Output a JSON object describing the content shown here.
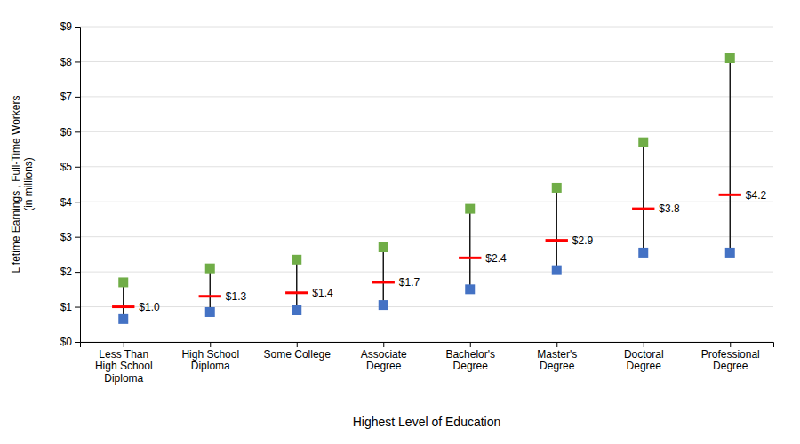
{
  "chart_data": {
    "type": "range",
    "categories": [
      "Less Than\nHigh School\nDiploma",
      "High School\nDiploma",
      "Some College",
      "Associate\nDegree",
      "Bachelor's\nDegree",
      "Master's\nDegree",
      "Doctoral\nDegree",
      "Professional\nDegree"
    ],
    "series": [
      {
        "color": "#4472C4",
        "marker": "square",
        "values": [
          0.65,
          0.85,
          0.9,
          1.05,
          1.5,
          2.05,
          2.55,
          2.55
        ]
      },
      {
        "color": "#FF0000",
        "marker": "dash",
        "values": [
          1.0,
          1.3,
          1.4,
          1.7,
          2.4,
          2.9,
          3.8,
          4.2
        ],
        "value_labels": [
          "$1.0",
          "$1.3",
          "$1.4",
          "$1.7",
          "$2.4",
          "$2.9",
          "$3.8",
          "$4.2"
        ]
      },
      {
        "color": "#70AD47",
        "marker": "square",
        "values": [
          1.7,
          2.1,
          2.35,
          2.7,
          3.8,
          4.4,
          5.7,
          8.1
        ]
      }
    ],
    "color": "#1a1a1a",
    "data_labels": true,
    "xlabel": "Highest Level of Education",
    "ylabel": "Lifetime Earnings , Full-Time Workers\n(in millions)",
    "ylim": [
      0,
      9
    ],
    "yticks": [
      {
        "value": 0,
        "label": "$0"
      },
      {
        "value": 1,
        "label": "$1"
      },
      {
        "value": 2,
        "label": "$2"
      },
      {
        "value": 3,
        "label": "$3"
      },
      {
        "value": 4,
        "label": "$4"
      },
      {
        "value": 5,
        "label": "$5"
      },
      {
        "value": 6,
        "label": "$6"
      },
      {
        "value": 7,
        "label": "$7"
      },
      {
        "value": 8,
        "label": "$8"
      },
      {
        "value": 9,
        "label": "$9"
      }
    ],
    "grid": true
  }
}
